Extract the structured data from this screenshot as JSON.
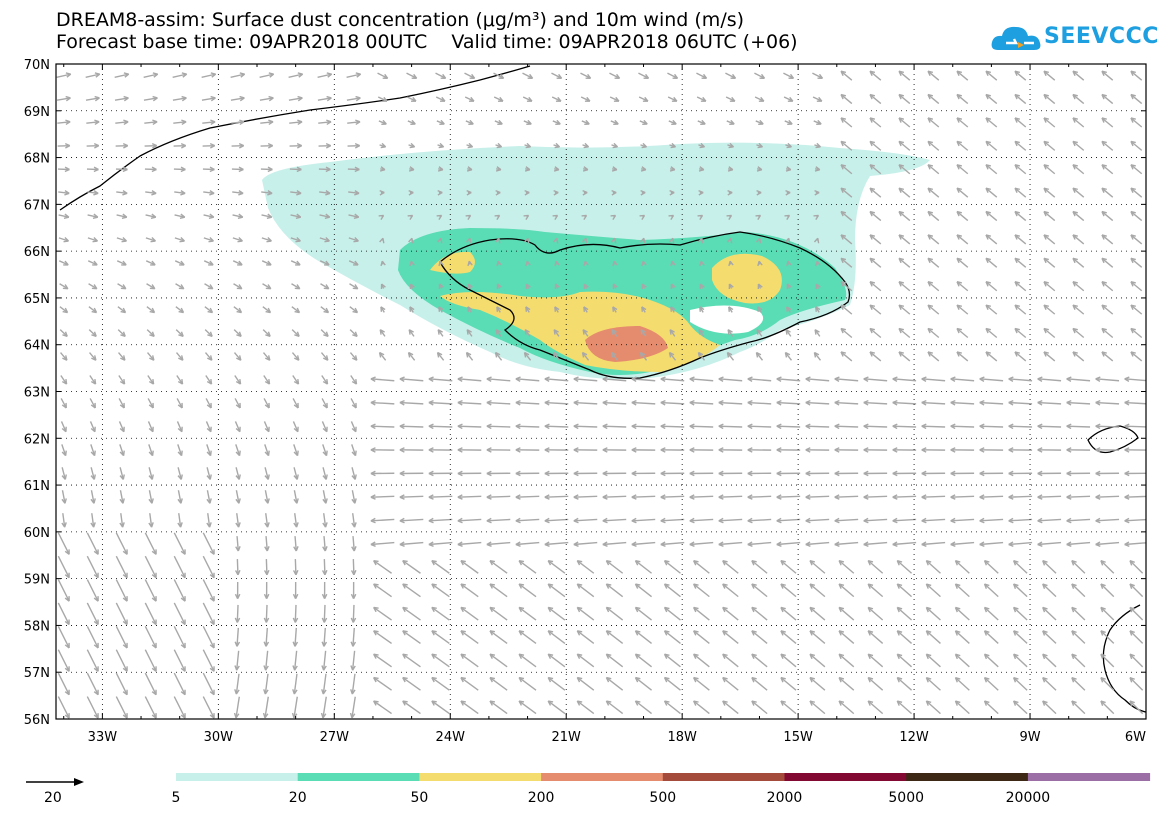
{
  "title_line1": "DREAM8-assim: Surface dust concentration (μg/m³) and 10m wind (m/s)",
  "title_line2": "Forecast base time: 09APR2018 00UTC    Valid time: 09APR2018 06UTC (+06)",
  "logo_text": "SEEVCCC",
  "map": {
    "lat_labels": [
      "70N",
      "69N",
      "68N",
      "67N",
      "66N",
      "65N",
      "64N",
      "63N",
      "62N",
      "61N",
      "60N",
      "59N",
      "58N",
      "57N",
      "56N"
    ],
    "lon_labels": [
      "33W",
      "30W",
      "27W",
      "24W",
      "21W",
      "18W",
      "15W",
      "12W",
      "9W",
      "6W"
    ],
    "lat_range": [
      56,
      70
    ],
    "lon_range": [
      -34.2,
      -6
    ]
  },
  "wind_reference": {
    "value": "20"
  },
  "colorbar": {
    "labels": [
      "5",
      "20",
      "50",
      "200",
      "500",
      "2000",
      "5000",
      "20000"
    ],
    "colors": [
      "#c8f0ea",
      "#5adcb4",
      "#f5dc6e",
      "#e68c6e",
      "#a54b3c",
      "#820a32",
      "#3c2814",
      "#9b6ea5"
    ]
  },
  "dust_colors": {
    "level5": "#c8f0ea",
    "level20": "#5adcb4",
    "level50": "#f5dc6e",
    "level200": "#e68c6e"
  }
}
